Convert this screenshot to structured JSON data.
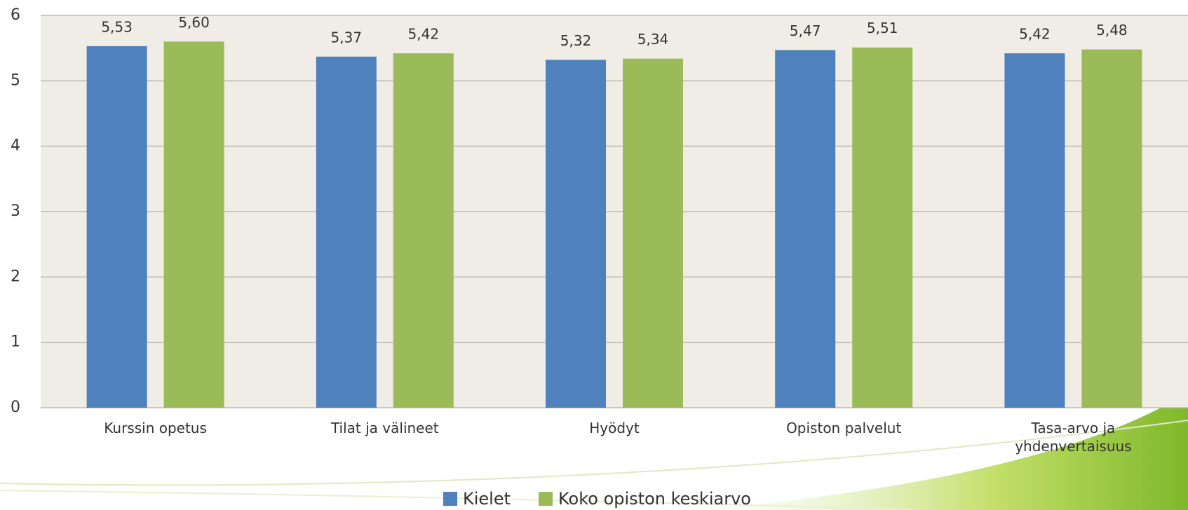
{
  "chart_data": {
    "type": "bar",
    "categories": [
      "Kurssin opetus",
      "Tilat ja välineet",
      "Hyödyt",
      "Opiston palvelut",
      "Tasa-arvo ja yhdenvertaisuus"
    ],
    "series": [
      {
        "name": "Kielet",
        "color": "#4f81bd",
        "values": [
          5.53,
          5.37,
          5.32,
          5.47,
          5.42
        ],
        "value_labels": [
          "5,53",
          "5,37",
          "5,32",
          "5,47",
          "5,42"
        ]
      },
      {
        "name": "Koko opiston keskiarvo",
        "color": "#9bbb59",
        "values": [
          5.6,
          5.42,
          5.34,
          5.51,
          5.48
        ],
        "value_labels": [
          "5,60",
          "5,42",
          "5,34",
          "5,51",
          "5,48"
        ]
      }
    ],
    "ylim": [
      0,
      6
    ],
    "yticks": [
      0,
      1,
      2,
      3,
      4,
      5,
      6
    ],
    "grid": true,
    "legend": "bottom"
  }
}
